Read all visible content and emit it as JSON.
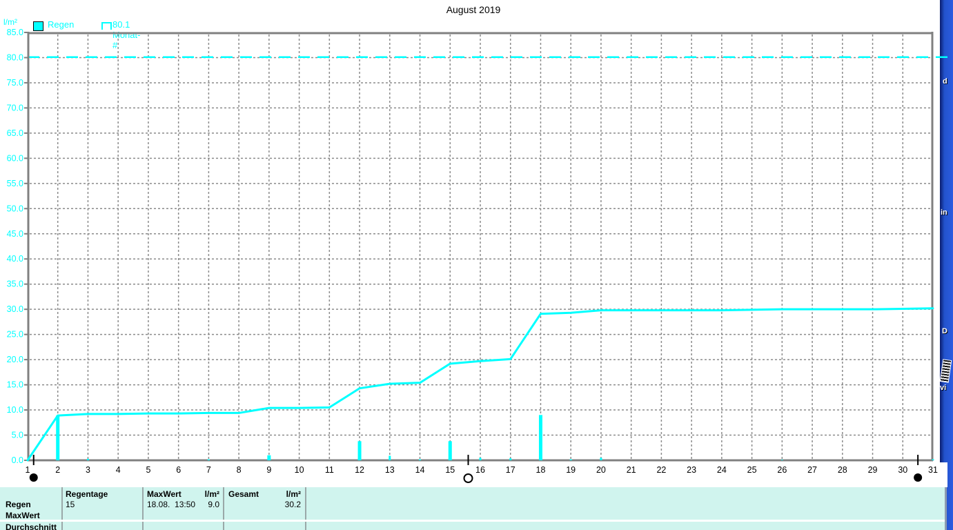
{
  "title": "August 2019",
  "axis": {
    "y_unit_label": "l/m²"
  },
  "legend": {
    "items": [
      {
        "label": "Regen",
        "swatch": "filled-square"
      },
      {
        "label": "80.1 Monat-#",
        "swatch": "outline-square"
      }
    ]
  },
  "chart_data": {
    "type": "line",
    "title": "August 2019",
    "xlabel": "",
    "ylabel": "l/m²",
    "xlim": [
      1,
      31
    ],
    "ylim": [
      0,
      85
    ],
    "ytick_step": 5,
    "grid": true,
    "legend_position": "top-left",
    "days": [
      1,
      2,
      3,
      4,
      5,
      6,
      7,
      8,
      9,
      10,
      11,
      12,
      13,
      14,
      15,
      16,
      17,
      18,
      19,
      20,
      21,
      22,
      23,
      24,
      25,
      26,
      27,
      28,
      29,
      30,
      31
    ],
    "cumulative_line": {
      "name": "Regen (kumuliert)",
      "color": "#00ffff",
      "values": [
        0.0,
        8.9,
        9.2,
        9.2,
        9.3,
        9.3,
        9.4,
        9.4,
        10.4,
        10.4,
        10.5,
        14.3,
        15.2,
        15.4,
        19.2,
        19.7,
        20.1,
        29.1,
        29.3,
        29.8,
        29.8,
        29.8,
        29.8,
        29.8,
        29.9,
        30.0,
        30.0,
        30.0,
        30.0,
        30.1,
        30.2
      ]
    },
    "daily_bars": {
      "name": "Regen (Tageswerte)",
      "color": "#00ffff",
      "points": [
        {
          "day": 2,
          "value": 8.9
        },
        {
          "day": 3,
          "value": 0.3
        },
        {
          "day": 7,
          "value": 0.2
        },
        {
          "day": 9,
          "value": 1.0
        },
        {
          "day": 12,
          "value": 3.8
        },
        {
          "day": 13,
          "value": 0.9
        },
        {
          "day": 14,
          "value": 0.2
        },
        {
          "day": 15,
          "value": 3.8
        },
        {
          "day": 16,
          "value": 0.5
        },
        {
          "day": 17,
          "value": 0.4
        },
        {
          "day": 18,
          "value": 9.0
        },
        {
          "day": 19,
          "value": 0.2
        },
        {
          "day": 20,
          "value": 0.5
        },
        {
          "day": 26,
          "value": 0.1
        },
        {
          "day": 31,
          "value": 0.2
        }
      ]
    },
    "threshold_line": {
      "value": 80.1,
      "label": "80.1 Monat-#",
      "color": "#00ffff",
      "style": "dashed"
    },
    "moon_markers": [
      {
        "day": 1.2,
        "phase": "new"
      },
      {
        "day": 15.6,
        "phase": "full"
      },
      {
        "day": 30.5,
        "phase": "new"
      }
    ]
  },
  "stats_panel": {
    "row_labels": [
      "Regen",
      "MaxWert",
      "Durchschnitt"
    ],
    "regentage": {
      "header": "Regentage",
      "value": "15"
    },
    "maxwert": {
      "header": "MaxWert",
      "unit": "l/m²",
      "date": "18.08.  13:50",
      "value": "9.0"
    },
    "gesamt": {
      "header": "Gesamt",
      "unit": "l/m²",
      "value": "30.2"
    }
  },
  "desktop": {
    "icon_fragments": {
      "f1": "d",
      "f2": "in",
      "f3": "D",
      "f4": "vi"
    },
    "zip_icon": "zip-archive-icon"
  },
  "colors": {
    "accent_cyan": "#00ffff",
    "grid_gray": "#8a8a8a",
    "border_gray": "#808080",
    "panel_bg": "#d0f4ee",
    "desktop_blue": "#2353cd",
    "text": "#000000"
  }
}
